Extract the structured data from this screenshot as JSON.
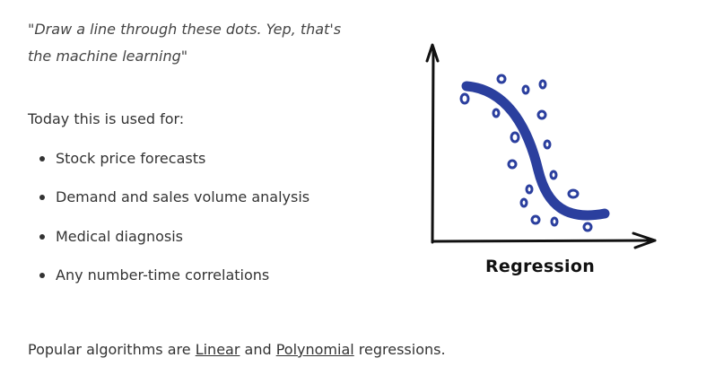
{
  "quote": {
    "line1": "\"Draw a line through these dots. Yep, that's",
    "line2": "the machine learning\""
  },
  "intro": "Today this is used for:",
  "uses": [
    "Stock price forecasts",
    "Demand and sales volume analysis",
    "Medical diagnosis",
    "Any number-time correlations"
  ],
  "outro": {
    "prefix": "Popular algorithms are ",
    "link1": "Linear",
    "middle": " and ",
    "link2": "Polynomial",
    "suffix": " regressions."
  },
  "illustration": {
    "caption": "Regression",
    "curve_color": "#2b3f9e",
    "axis_color": "#111111"
  }
}
